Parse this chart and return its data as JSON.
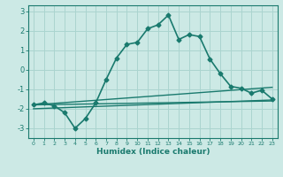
{
  "title": "",
  "xlabel": "Humidex (Indice chaleur)",
  "ylabel": "",
  "background_color": "#cce9e5",
  "grid_color": "#aad4cf",
  "line_color": "#1a7a6e",
  "xlim": [
    -0.5,
    23.5
  ],
  "ylim": [
    -3.5,
    3.3
  ],
  "yticks": [
    -3,
    -2,
    -1,
    0,
    1,
    2,
    3
  ],
  "xticks": [
    0,
    1,
    2,
    3,
    4,
    5,
    6,
    7,
    8,
    9,
    10,
    11,
    12,
    13,
    14,
    15,
    16,
    17,
    18,
    19,
    20,
    21,
    22,
    23
  ],
  "series_main": {
    "x": [
      0,
      1,
      2,
      3,
      4,
      5,
      6,
      7,
      8,
      9,
      10,
      11,
      12,
      13,
      14,
      15,
      16,
      17,
      18,
      19,
      20,
      21,
      22,
      23
    ],
    "y": [
      -1.8,
      -1.7,
      -1.85,
      -2.2,
      -3.0,
      -2.5,
      -1.7,
      -0.5,
      0.6,
      1.3,
      1.4,
      2.1,
      2.3,
      2.8,
      1.55,
      1.8,
      1.7,
      0.55,
      -0.2,
      -0.85,
      -0.95,
      -1.2,
      -1.05,
      -1.5
    ]
  },
  "series_lines": [
    {
      "x0": 0,
      "y0": -1.8,
      "x1": 23,
      "y1": -1.6
    },
    {
      "x0": 0,
      "y0": -2.0,
      "x1": 23,
      "y1": -1.55
    },
    {
      "x0": 0,
      "y0": -1.8,
      "x1": 23,
      "y1": -0.9
    }
  ]
}
